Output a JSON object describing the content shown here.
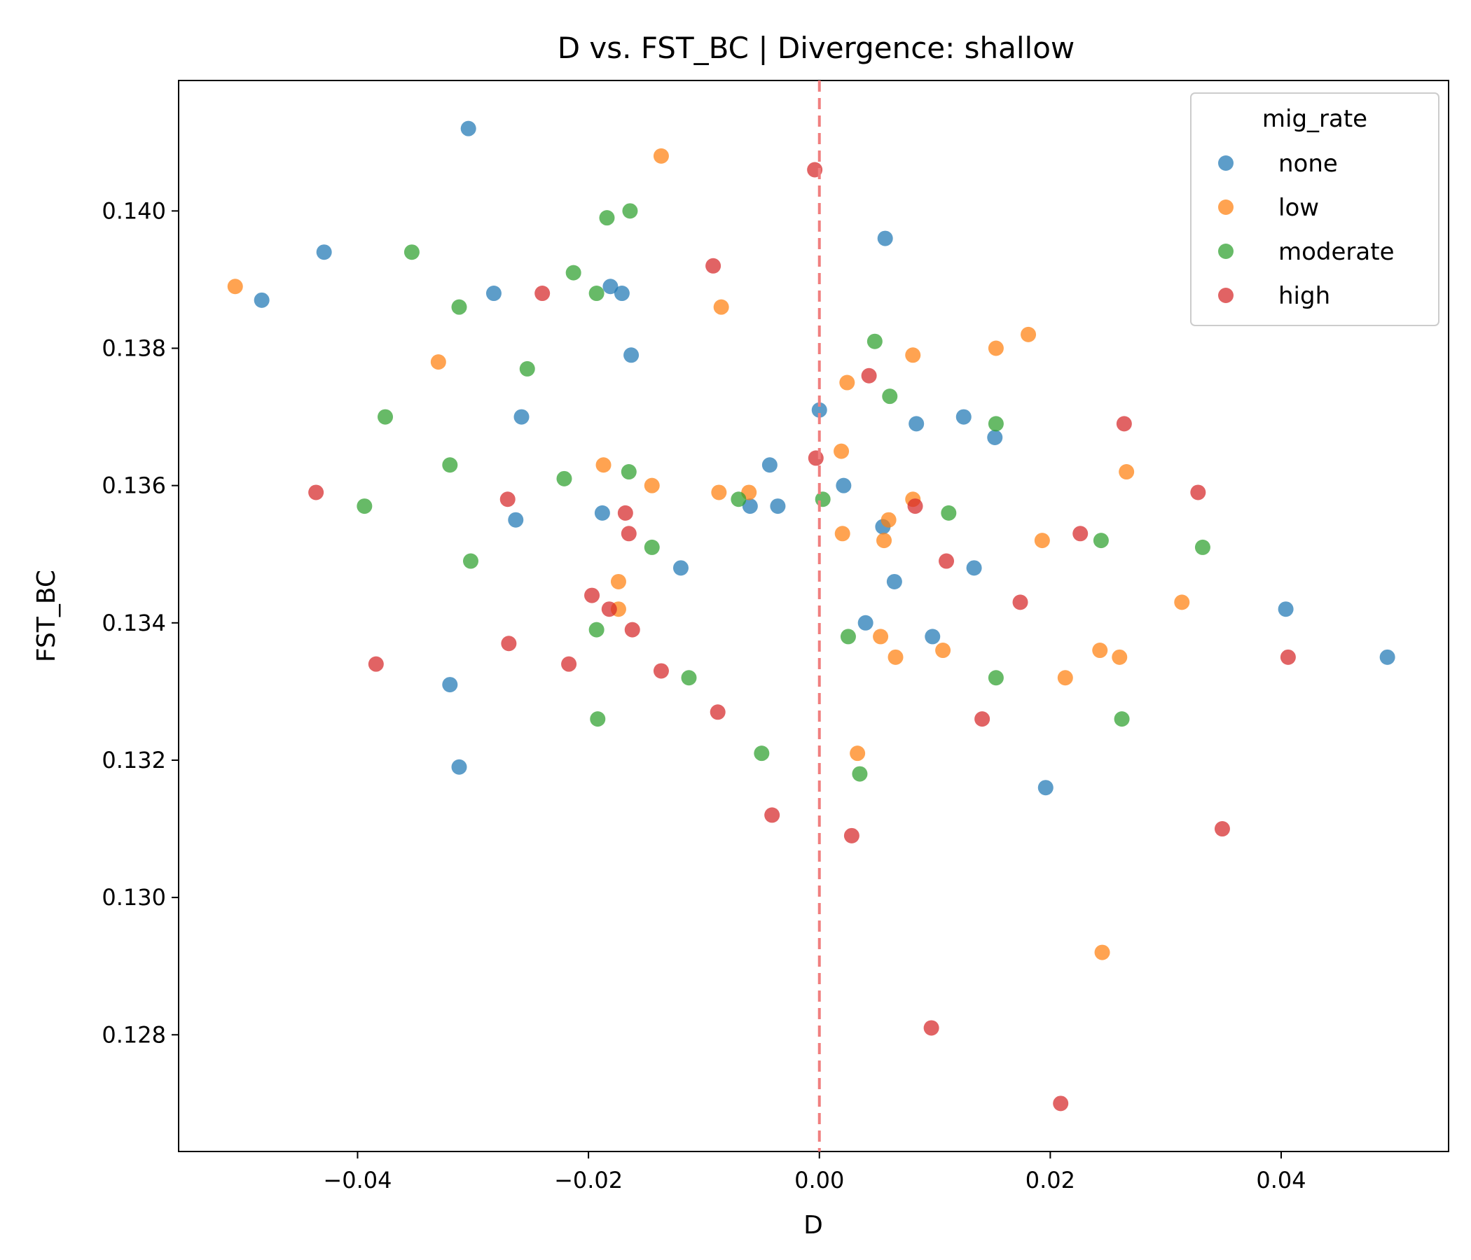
{
  "chart_data": {
    "type": "scatter",
    "title": "D vs. FST_BC | Divergence: shallow",
    "xlabel": "D",
    "ylabel": "FST_BC",
    "xlim": [
      -0.0555,
      0.0545
    ],
    "ylim": [
      0.1263,
      0.1419
    ],
    "x_ticks": [
      -0.04,
      -0.02,
      0.0,
      0.02,
      0.04
    ],
    "x_tick_labels": [
      "−0.04",
      "−0.02",
      "0.00",
      "0.02",
      "0.04"
    ],
    "y_ticks": [
      0.128,
      0.13,
      0.132,
      0.134,
      0.136,
      0.138,
      0.14
    ],
    "y_tick_labels": [
      "0.128",
      "0.130",
      "0.132",
      "0.134",
      "0.136",
      "0.138",
      "0.140"
    ],
    "grid": false,
    "reference_line": {
      "axis": "x",
      "value": 0.0,
      "style": "dashed",
      "color": "#f07f7f"
    },
    "legend": {
      "title": "mig_rate",
      "placement": "top-right"
    },
    "series": [
      {
        "name": "none",
        "color": "#1f77b4",
        "points": [
          [
            -0.0304,
            0.1412
          ],
          [
            -0.0429,
            0.1394
          ],
          [
            -0.0483,
            0.1387
          ],
          [
            -0.0282,
            0.1388
          ],
          [
            -0.0181,
            0.1389
          ],
          [
            -0.0171,
            0.1388
          ],
          [
            -0.0163,
            0.1379
          ],
          [
            -0.0258,
            0.137
          ],
          [
            -0.0263,
            0.1355
          ],
          [
            -0.0188,
            0.1356
          ],
          [
            -0.012,
            0.1348
          ],
          [
            -0.0043,
            0.1363
          ],
          [
            -0.006,
            0.1357
          ],
          [
            -0.0036,
            0.1357
          ],
          [
            0.0,
            0.1371
          ],
          [
            0.0057,
            0.1396
          ],
          [
            0.0084,
            0.1369
          ],
          [
            0.0125,
            0.137
          ],
          [
            0.0152,
            0.1367
          ],
          [
            0.0021,
            0.136
          ],
          [
            0.0055,
            0.1354
          ],
          [
            0.0065,
            0.1346
          ],
          [
            0.0134,
            0.1348
          ],
          [
            0.004,
            0.134
          ],
          [
            0.0098,
            0.1338
          ],
          [
            -0.032,
            0.1331
          ],
          [
            -0.0312,
            0.1319
          ],
          [
            0.0196,
            0.1316
          ],
          [
            0.0404,
            0.1342
          ],
          [
            0.0492,
            0.1335
          ]
        ]
      },
      {
        "name": "low",
        "color": "#ff7f0e",
        "points": [
          [
            -0.0137,
            0.1408
          ],
          [
            -0.0506,
            0.1389
          ],
          [
            -0.033,
            0.1378
          ],
          [
            -0.0085,
            0.1386
          ],
          [
            0.0024,
            0.1375
          ],
          [
            0.0081,
            0.1379
          ],
          [
            0.0153,
            0.138
          ],
          [
            0.0181,
            0.1382
          ],
          [
            -0.0187,
            0.1363
          ],
          [
            -0.0145,
            0.136
          ],
          [
            -0.0087,
            0.1359
          ],
          [
            -0.0061,
            0.1359
          ],
          [
            0.0019,
            0.1365
          ],
          [
            0.002,
            0.1353
          ],
          [
            0.006,
            0.1355
          ],
          [
            0.0056,
            0.1352
          ],
          [
            0.0081,
            0.1358
          ],
          [
            0.0193,
            0.1352
          ],
          [
            0.0266,
            0.1362
          ],
          [
            -0.0174,
            0.1346
          ],
          [
            -0.0174,
            0.1342
          ],
          [
            0.0053,
            0.1338
          ],
          [
            0.0066,
            0.1335
          ],
          [
            0.0107,
            0.1336
          ],
          [
            0.0243,
            0.1336
          ],
          [
            0.026,
            0.1335
          ],
          [
            0.0213,
            0.1332
          ],
          [
            0.0314,
            0.1343
          ],
          [
            0.0033,
            0.1321
          ],
          [
            0.0245,
            0.1292
          ]
        ]
      },
      {
        "name": "moderate",
        "color": "#2ca02c",
        "points": [
          [
            -0.0164,
            0.14
          ],
          [
            -0.0184,
            0.1399
          ],
          [
            -0.0353,
            0.1394
          ],
          [
            -0.0213,
            0.1391
          ],
          [
            -0.0193,
            0.1388
          ],
          [
            -0.0312,
            0.1386
          ],
          [
            -0.0253,
            0.1377
          ],
          [
            -0.0376,
            0.137
          ],
          [
            0.0048,
            0.1381
          ],
          [
            0.0061,
            0.1373
          ],
          [
            0.0153,
            0.1369
          ],
          [
            -0.032,
            0.1363
          ],
          [
            -0.0221,
            0.1361
          ],
          [
            -0.0165,
            0.1362
          ],
          [
            -0.0394,
            0.1357
          ],
          [
            -0.007,
            0.1358
          ],
          [
            0.0003,
            0.1358
          ],
          [
            0.0112,
            0.1356
          ],
          [
            -0.0145,
            0.1351
          ],
          [
            -0.0302,
            0.1349
          ],
          [
            0.0244,
            0.1352
          ],
          [
            0.0332,
            0.1351
          ],
          [
            -0.0193,
            0.1339
          ],
          [
            0.0025,
            0.1338
          ],
          [
            -0.0113,
            0.1332
          ],
          [
            0.0153,
            0.1332
          ],
          [
            -0.0192,
            0.1326
          ],
          [
            0.0262,
            0.1326
          ],
          [
            -0.005,
            0.1321
          ],
          [
            0.0035,
            0.1318
          ]
        ]
      },
      {
        "name": "high",
        "color": "#d62728",
        "points": [
          [
            -0.0004,
            0.1406
          ],
          [
            -0.0092,
            0.1392
          ],
          [
            -0.024,
            0.1388
          ],
          [
            0.0043,
            0.1376
          ],
          [
            0.0264,
            0.1369
          ],
          [
            -0.0003,
            0.1364
          ],
          [
            -0.0436,
            0.1359
          ],
          [
            -0.027,
            0.1358
          ],
          [
            -0.0168,
            0.1356
          ],
          [
            -0.0165,
            0.1353
          ],
          [
            0.0083,
            0.1357
          ],
          [
            0.0226,
            0.1353
          ],
          [
            0.0328,
            0.1359
          ],
          [
            0.011,
            0.1349
          ],
          [
            -0.0197,
            0.1344
          ],
          [
            -0.0182,
            0.1342
          ],
          [
            -0.0162,
            0.1339
          ],
          [
            0.0174,
            0.1343
          ],
          [
            -0.0269,
            0.1337
          ],
          [
            -0.0384,
            0.1334
          ],
          [
            -0.0217,
            0.1334
          ],
          [
            -0.0137,
            0.1333
          ],
          [
            0.0406,
            0.1335
          ],
          [
            -0.0088,
            0.1327
          ],
          [
            0.0141,
            0.1326
          ],
          [
            -0.0041,
            0.1312
          ],
          [
            0.0028,
            0.1309
          ],
          [
            0.0349,
            0.131
          ],
          [
            0.0097,
            0.1281
          ],
          [
            0.0209,
            0.127
          ]
        ]
      }
    ]
  }
}
